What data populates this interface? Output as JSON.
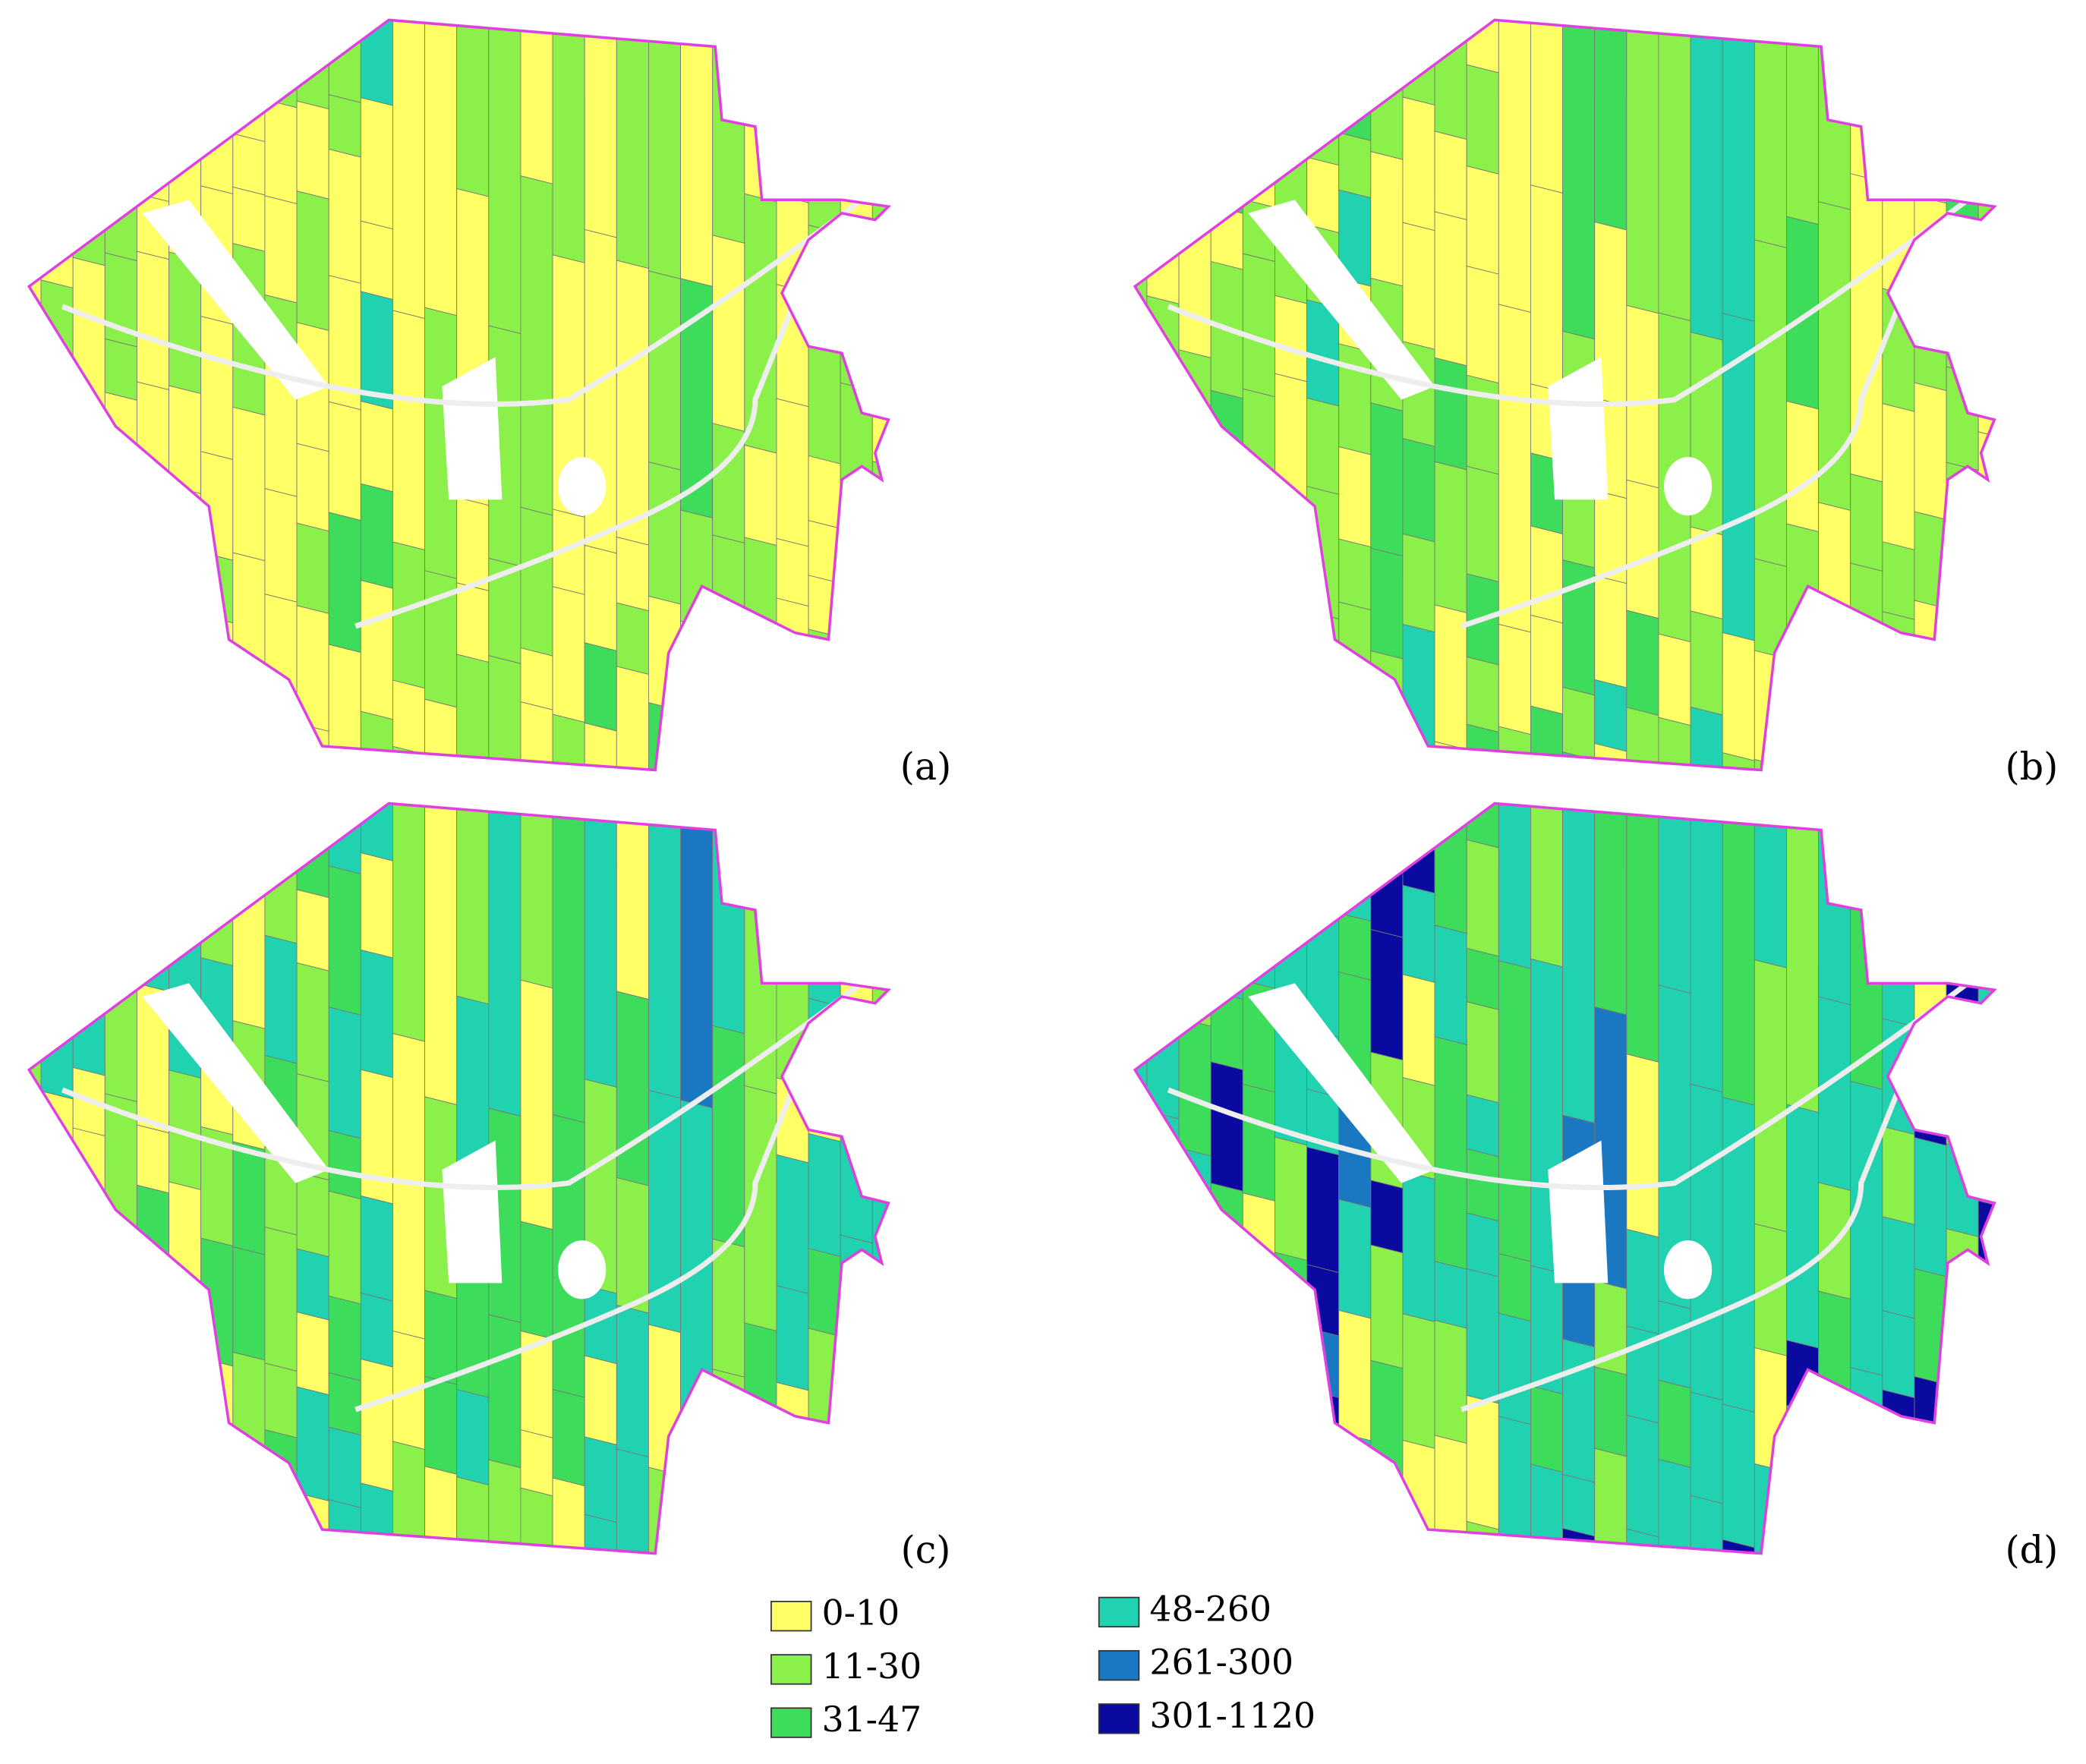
{
  "panels": [
    {
      "label": "(a)"
    },
    {
      "label": "(b)"
    },
    {
      "label": "(c)"
    },
    {
      "label": "(d)"
    }
  ],
  "legend": [
    {
      "label": "0-10",
      "color": "#ffff66"
    },
    {
      "label": "11-30",
      "color": "#8cf04a"
    },
    {
      "label": "31-47",
      "color": "#3ddc5a"
    },
    {
      "label": "48-260",
      "color": "#20d2b0"
    },
    {
      "label": "261-300",
      "color": "#1a78c2"
    },
    {
      "label": "301-1120",
      "color": "#0a0aa0"
    }
  ]
}
